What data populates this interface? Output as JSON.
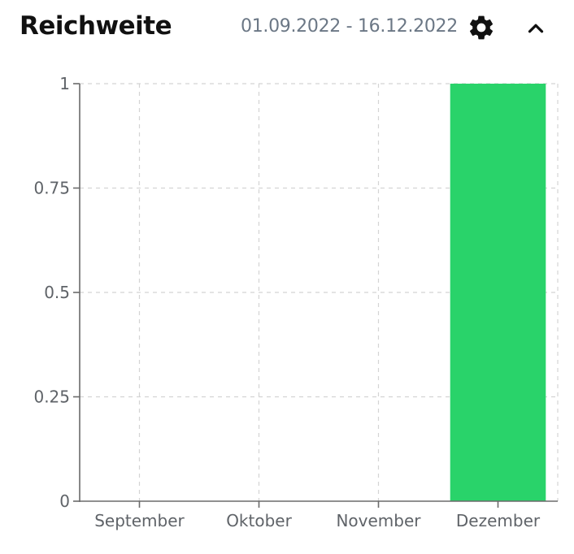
{
  "header": {
    "title": "Reichweite",
    "date_range": "01.09.2022 - 16.12.2022"
  },
  "icons": {
    "settings": "gear-icon",
    "collapse": "chevron-up-icon"
  },
  "colors": {
    "bar": "#29d36a",
    "grid": "#d4d4d4",
    "axis": "#6b6b6b"
  },
  "chart_data": {
    "type": "bar",
    "title": "Reichweite",
    "categories": [
      "September",
      "Oktober",
      "November",
      "Dezember"
    ],
    "values": [
      0,
      0,
      0,
      1
    ],
    "y_ticks": [
      "0",
      "0.25",
      "0.5",
      "0.75",
      "1"
    ],
    "ylim": [
      0,
      1
    ],
    "grid": true
  }
}
